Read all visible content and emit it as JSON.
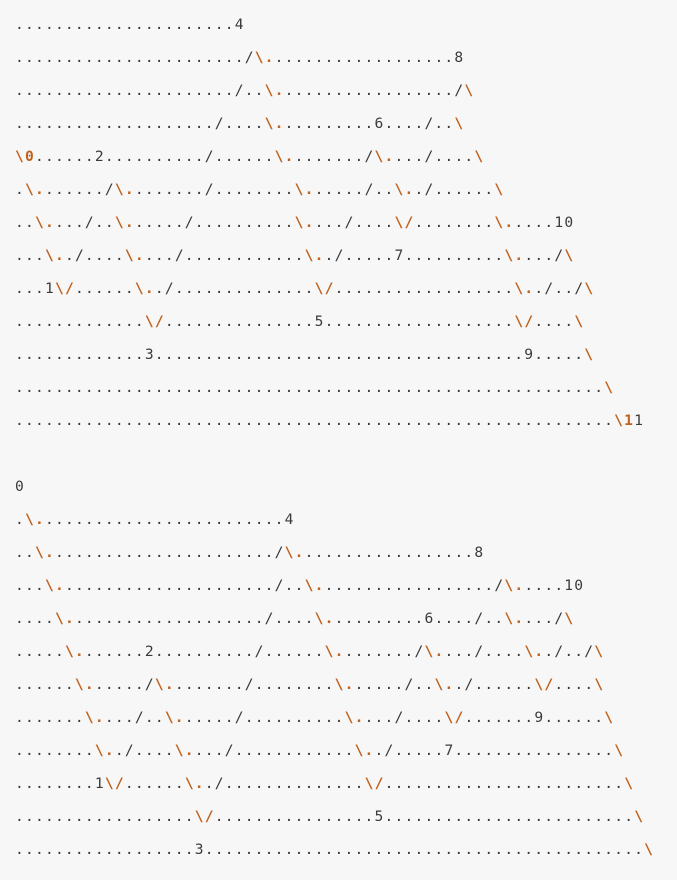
{
  "diagrams": [
    {
      "rows": [
        "......................4",
        "......................./\\...................8",
        "....................../..\\................../\\",
        "..................../....\\..........6..../..\\",
        "\\0......2........../......\\......../\\..../....\\",
        ".\\......./\\......../........\\....../..\\../......\\",
        "..\\..../..\\....../..........\\..../....\\/........\\.....10",
        "...\\../....\\..../............\\../.....7..........\\..../\\",
        "...1\\/......\\../..............\\/..................\\../../\\",
        ".............\\/...............5...................\\/....\\",
        ".............3.....................................9.....\\",
        "...........................................................\\",
        "............................................................\\11"
      ]
    },
    {
      "rows": [
        "0",
        ".\\.........................4",
        "..\\......................./\\..................8",
        "...\\....................../..\\................../\\.....10",
        "....\\..................../....\\..........6..../..\\..../\\",
        ".....\\.......2........../......\\......../\\..../....\\../../\\",
        "......\\....../\\......../........\\....../..\\../......\\/....\\",
        ".......\\..../..\\....../..........\\..../....\\/.......9......\\",
        "........\\../....\\..../............\\../.....7................\\",
        "........1\\/......\\../..............\\/........................\\",
        "..................\\/................5.........................\\",
        "..................3............................................\\"
      ]
    }
  ]
}
